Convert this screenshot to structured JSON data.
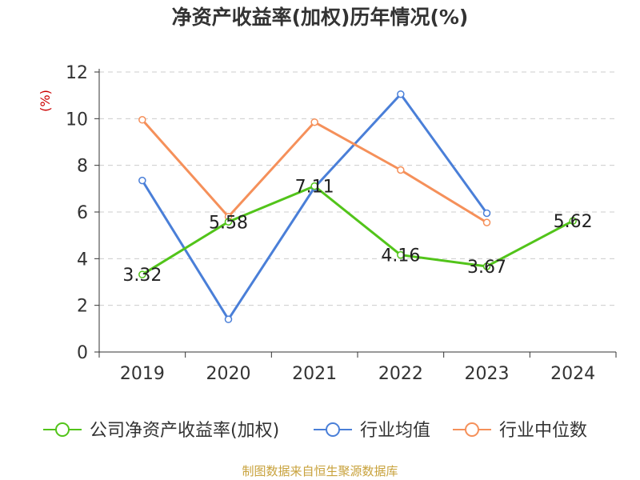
{
  "chart_data": {
    "type": "line",
    "title": "净资产收益率(加权)历年情况(%)",
    "ylabel": "(%)",
    "ylim": [
      0,
      12
    ],
    "yticks": [
      0,
      2,
      4,
      6,
      8,
      10,
      12
    ],
    "grid": true,
    "legend_position": "bottom",
    "categories": [
      "2019",
      "2020",
      "2021",
      "2022",
      "2023",
      "2024"
    ],
    "series": [
      {
        "name": "公司净资产收益率(加权)",
        "color": "#52c41a",
        "values": [
          3.32,
          5.58,
          7.11,
          4.16,
          3.67,
          5.62
        ],
        "show_labels": true
      },
      {
        "name": "行业均值",
        "color": "#4a7fd8",
        "values": [
          7.35,
          1.4,
          7.05,
          11.05,
          5.95,
          null
        ],
        "show_labels": false
      },
      {
        "name": "行业中位数",
        "color": "#f5905a",
        "values": [
          9.95,
          5.8,
          9.85,
          7.8,
          5.55,
          null
        ],
        "show_labels": false
      }
    ]
  },
  "source": {
    "text": "制图数据来自恒生聚源数据库",
    "color": "#c8a23c"
  },
  "colors": {
    "ylabel": "#cc0000",
    "axis": "#333333",
    "grid": "#cccccc"
  }
}
